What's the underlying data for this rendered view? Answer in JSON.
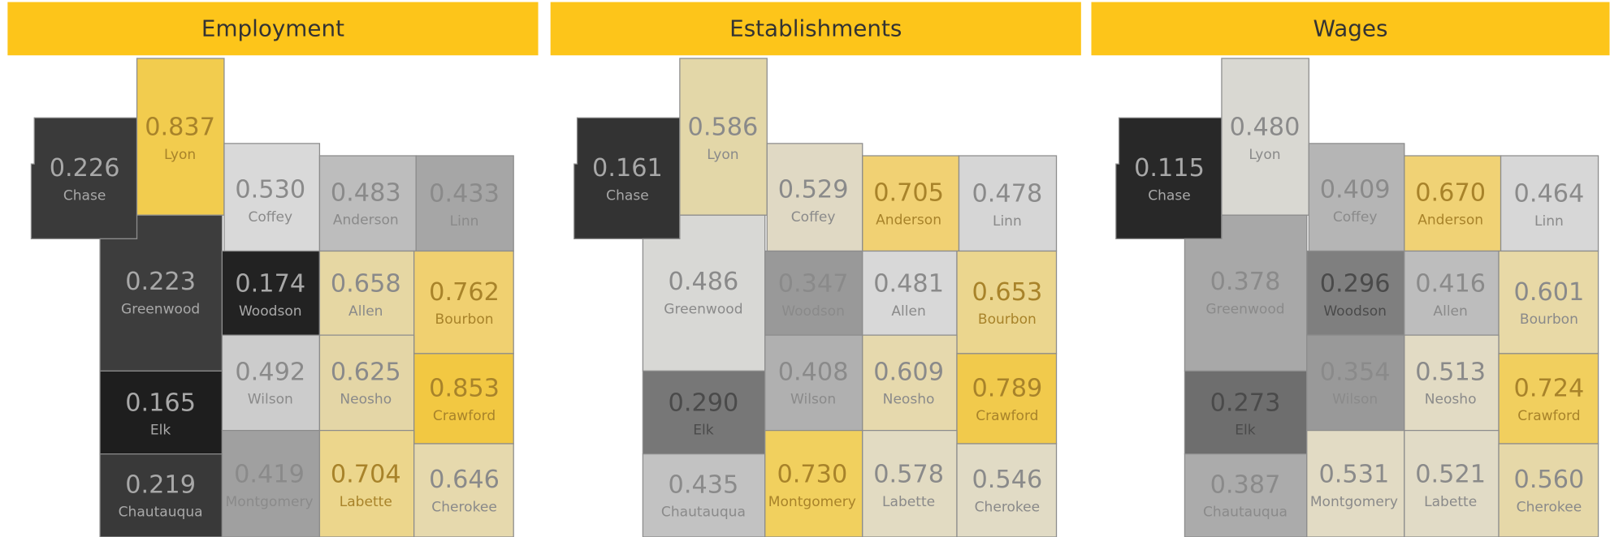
{
  "panels": [
    {
      "title": "Employment",
      "counties": [
        {
          "name": "Chase",
          "value": "0.226",
          "color": "#3a3a3a"
        },
        {
          "name": "Lyon",
          "value": "0.837",
          "color": "#f2cc4e"
        },
        {
          "name": "Coffey",
          "value": "0.530",
          "color": "#d9d9d9"
        },
        {
          "name": "Anderson",
          "value": "0.483",
          "color": "#bdbdbd"
        },
        {
          "name": "Linn",
          "value": "0.433",
          "color": "#a6a6a6"
        },
        {
          "name": "Greenwood",
          "value": "0.223",
          "color": "#3d3d3d"
        },
        {
          "name": "Woodson",
          "value": "0.174",
          "color": "#222222"
        },
        {
          "name": "Allen",
          "value": "0.658",
          "color": "#e6d7a3"
        },
        {
          "name": "Bourbon",
          "value": "0.762",
          "color": "#f0d070"
        },
        {
          "name": "Elk",
          "value": "0.165",
          "color": "#1e1e1e"
        },
        {
          "name": "Wilson",
          "value": "0.492",
          "color": "#cccccc"
        },
        {
          "name": "Neosho",
          "value": "0.625",
          "color": "#e4d6a6"
        },
        {
          "name": "Crawford",
          "value": "0.853",
          "color": "#f2c842"
        },
        {
          "name": "Chautauqua",
          "value": "0.219",
          "color": "#393939"
        },
        {
          "name": "Montgomery",
          "value": "0.419",
          "color": "#a0a0a0"
        },
        {
          "name": "Labette",
          "value": "0.704",
          "color": "#ecd68c"
        },
        {
          "name": "Cherokee",
          "value": "0.646",
          "color": "#e6d9ad"
        }
      ]
    },
    {
      "title": "Establishments",
      "counties": [
        {
          "name": "Chase",
          "value": "0.161",
          "color": "#333333"
        },
        {
          "name": "Lyon",
          "value": "0.586",
          "color": "#e3d7a8"
        },
        {
          "name": "Coffey",
          "value": "0.529",
          "color": "#e0d9c4"
        },
        {
          "name": "Anderson",
          "value": "0.705",
          "color": "#f1d173"
        },
        {
          "name": "Linn",
          "value": "0.478",
          "color": "#d6d6d6"
        },
        {
          "name": "Greenwood",
          "value": "0.486",
          "color": "#d8d8d5"
        },
        {
          "name": "Woodson",
          "value": "0.347",
          "color": "#999999"
        },
        {
          "name": "Allen",
          "value": "0.481",
          "color": "#d8d8d8"
        },
        {
          "name": "Bourbon",
          "value": "0.653",
          "color": "#ebd68e"
        },
        {
          "name": "Elk",
          "value": "0.290",
          "color": "#777777"
        },
        {
          "name": "Wilson",
          "value": "0.408",
          "color": "#b0b0b0"
        },
        {
          "name": "Neosho",
          "value": "0.609",
          "color": "#e6d9ad"
        },
        {
          "name": "Crawford",
          "value": "0.789",
          "color": "#f1ca4c"
        },
        {
          "name": "Chautauqua",
          "value": "0.435",
          "color": "#c2c2c2"
        },
        {
          "name": "Montgomery",
          "value": "0.730",
          "color": "#f1d05e"
        },
        {
          "name": "Labette",
          "value": "0.578",
          "color": "#e2dbc2"
        },
        {
          "name": "Cherokee",
          "value": "0.546",
          "color": "#e1dbc5"
        }
      ]
    },
    {
      "title": "Wages",
      "counties": [
        {
          "name": "Chase",
          "value": "0.115",
          "color": "#282828"
        },
        {
          "name": "Lyon",
          "value": "0.480",
          "color": "#d9d8d2"
        },
        {
          "name": "Coffey",
          "value": "0.409",
          "color": "#b5b5b5"
        },
        {
          "name": "Anderson",
          "value": "0.670",
          "color": "#f0d275"
        },
        {
          "name": "Linn",
          "value": "0.464",
          "color": "#d7d7d7"
        },
        {
          "name": "Greenwood",
          "value": "0.378",
          "color": "#a8a8a8"
        },
        {
          "name": "Woodson",
          "value": "0.296",
          "color": "#7f7f7f"
        },
        {
          "name": "Allen",
          "value": "0.416",
          "color": "#bdbdbd"
        },
        {
          "name": "Bourbon",
          "value": "0.601",
          "color": "#e8d9a6"
        },
        {
          "name": "Elk",
          "value": "0.273",
          "color": "#6e6e6e"
        },
        {
          "name": "Wilson",
          "value": "0.354",
          "color": "#999999"
        },
        {
          "name": "Neosho",
          "value": "0.513",
          "color": "#e2dbc4"
        },
        {
          "name": "Crawford",
          "value": "0.724",
          "color": "#f1cf5e"
        },
        {
          "name": "Chautauqua",
          "value": "0.387",
          "color": "#ababab"
        },
        {
          "name": "Montgomery",
          "value": "0.531",
          "color": "#e2dbc4"
        },
        {
          "name": "Labette",
          "value": "0.521",
          "color": "#e1dbc6"
        },
        {
          "name": "Cherokee",
          "value": "0.560",
          "color": "#e6d8a8"
        }
      ]
    }
  ]
}
